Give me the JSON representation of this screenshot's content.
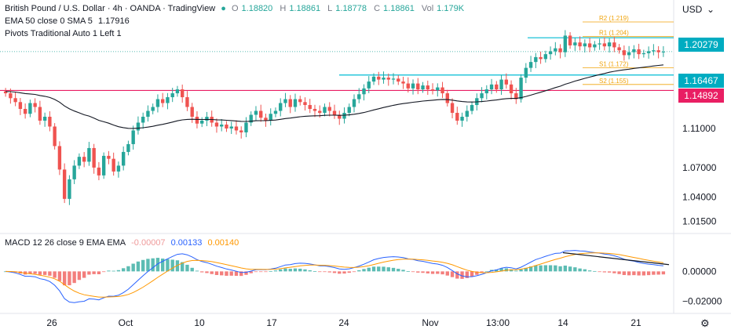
{
  "header": {
    "title": "British Pound / U.S. Dollar · 4h · OANDA · TradingView",
    "ohlc": {
      "o_label": "O",
      "o": "1.18820",
      "h_label": "H",
      "h": "1.18861",
      "l_label": "L",
      "l": "1.18778",
      "c_label": "C",
      "c": "1.18861",
      "vol_label": "Vol",
      "vol": "1.179K"
    },
    "ema_line": {
      "label": "EMA 50 close 0 SMA 5",
      "value": "1.17916"
    },
    "pivots_line": {
      "label": "Pivots Traditional Auto 1 Left 1"
    },
    "currency": "USD"
  },
  "macd_header": {
    "label": "MACD 12 26 close 9 EMA EMA",
    "hist": "-0.00007",
    "macd": "0.00133",
    "signal": "0.00140"
  },
  "colors": {
    "up": "#26a69a",
    "down": "#ef5350",
    "ema": "#131722",
    "macd": "#2962ff",
    "signal": "#ff9800",
    "support": "#00bcd4",
    "resistance": "#e91e63",
    "pivot": "#f0a30a"
  },
  "chart_data": {
    "type": "candlestick",
    "price_axis": {
      "ticks": [
        1.11,
        1.07,
        1.04,
        1.015
      ],
      "tick_labels": [
        "1.11000",
        "1.07000",
        "1.04000",
        "1.01500"
      ],
      "range": [
        1.005,
        1.235
      ]
    },
    "time_axis": {
      "labels": [
        "26",
        "Oct",
        "10",
        "17",
        "24",
        "Nov",
        "13:00",
        "14",
        "21"
      ]
    },
    "price_tags": [
      {
        "value": 1.20279,
        "label": "1.20279",
        "color": "#00acc1"
      },
      {
        "value": 1.16467,
        "label": "1.16467",
        "color": "#00acc1"
      },
      {
        "value": 1.14892,
        "label": "1.14892",
        "color": "#e91e63"
      }
    ],
    "horizontal_lines": [
      {
        "name": "resistance-upper",
        "value": 1.20279
      },
      {
        "name": "resistance-mid",
        "value": 1.16467
      },
      {
        "name": "support-red",
        "value": 1.14892
      }
    ],
    "pivots": [
      {
        "label": "R2 (1.219)",
        "value": 1.219
      },
      {
        "label": "R1 (1.204)",
        "value": 1.204
      },
      {
        "label": "S1 (1.172)",
        "value": 1.172
      },
      {
        "label": "S2 (1.155)",
        "value": 1.155
      }
    ],
    "closes": [
      1.146,
      1.141,
      1.137,
      1.13,
      1.125,
      1.136,
      1.132,
      1.118,
      1.122,
      1.112,
      1.092,
      1.068,
      1.038,
      1.058,
      1.072,
      1.081,
      1.076,
      1.09,
      1.07,
      1.062,
      1.082,
      1.079,
      1.066,
      1.072,
      1.086,
      1.094,
      1.108,
      1.116,
      1.122,
      1.128,
      1.132,
      1.14,
      1.136,
      1.142,
      1.146,
      1.15,
      1.142,
      1.132,
      1.122,
      1.115,
      1.118,
      1.122,
      1.116,
      1.112,
      1.114,
      1.11,
      1.112,
      1.108,
      1.106,
      1.116,
      1.124,
      1.128,
      1.121,
      1.118,
      1.125,
      1.128,
      1.136,
      1.14,
      1.132,
      1.14,
      1.137,
      1.134,
      1.13,
      1.128,
      1.126,
      1.132,
      1.128,
      1.124,
      1.12,
      1.126,
      1.132,
      1.14,
      1.145,
      1.151,
      1.158,
      1.163,
      1.16,
      1.162,
      1.16,
      1.161,
      1.158,
      1.156,
      1.151,
      1.156,
      1.15,
      1.154,
      1.15,
      1.149,
      1.152,
      1.146,
      1.136,
      1.126,
      1.118,
      1.122,
      1.128,
      1.134,
      1.141,
      1.146,
      1.15,
      1.155,
      1.15,
      1.16,
      1.155,
      1.146,
      1.14,
      1.162,
      1.172,
      1.178,
      1.183,
      1.181,
      1.186,
      1.189,
      1.192,
      1.188,
      1.205,
      1.195,
      1.198,
      1.194,
      1.197,
      1.193,
      1.196,
      1.197,
      1.194,
      1.198,
      1.193,
      1.19,
      1.185,
      1.188,
      1.191,
      1.186,
      1.187,
      1.189,
      1.19,
      1.188,
      1.1886
    ],
    "ema50": {
      "start": 1.148,
      "period": 50
    },
    "macd": {
      "ticks": [
        0.0,
        -0.02
      ],
      "tick_labels": [
        "0.00000",
        "−0.02000"
      ],
      "range": [
        -0.026,
        0.018
      ],
      "trendline": [
        0.0125,
        0.0045
      ]
    }
  }
}
